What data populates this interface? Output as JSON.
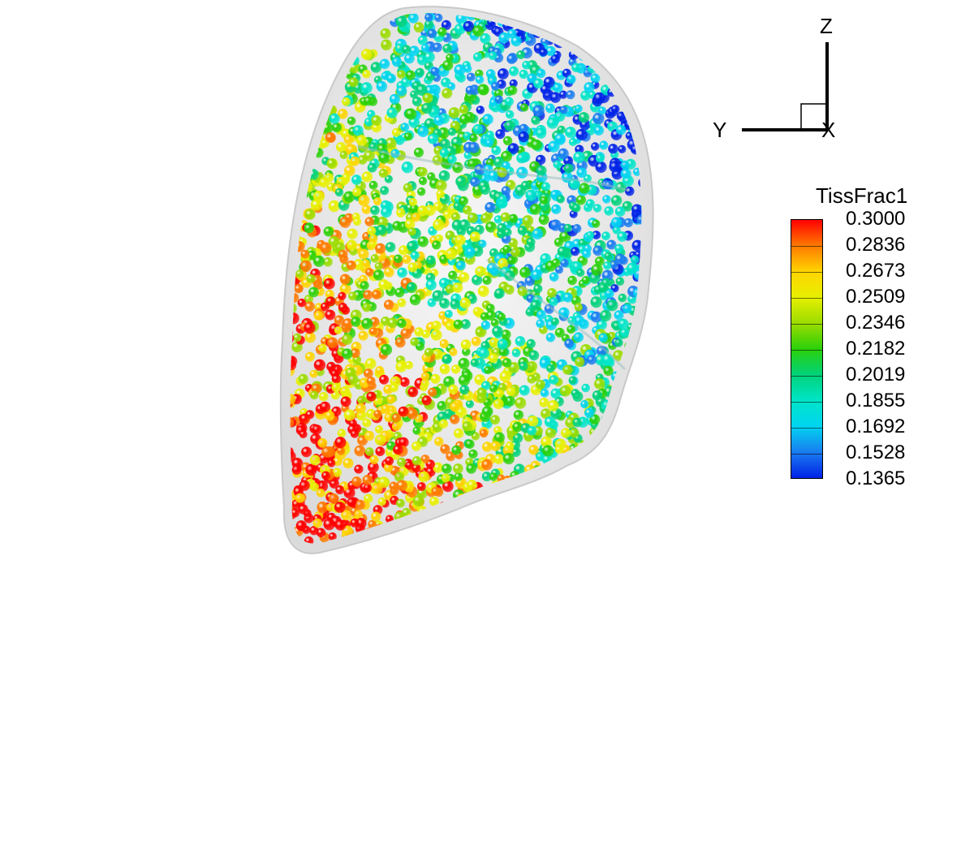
{
  "axes": {
    "z_label": "Z",
    "y_label": "Y",
    "x_label": "X"
  },
  "legend": {
    "title": "TissFrac1",
    "ticks": [
      "0.3000",
      "0.2836",
      "0.2673",
      "0.2509",
      "0.2346",
      "0.2182",
      "0.2019",
      "0.1855",
      "0.1692",
      "0.1528",
      "0.1365"
    ],
    "colors": [
      "#ff0000",
      "#ff7a00",
      "#ffd400",
      "#e7f000",
      "#9bdc00",
      "#2bd10a",
      "#00d27a",
      "#00e5c8",
      "#00d4f0",
      "#1a7cf0",
      "#0022e6"
    ],
    "min": 0.1365,
    "max": 0.3
  },
  "scene": {
    "description_colors": {
      "shell": "#d8d8d8",
      "sphere_high": "#ff0000",
      "sphere_low": "#0022e6"
    }
  }
}
